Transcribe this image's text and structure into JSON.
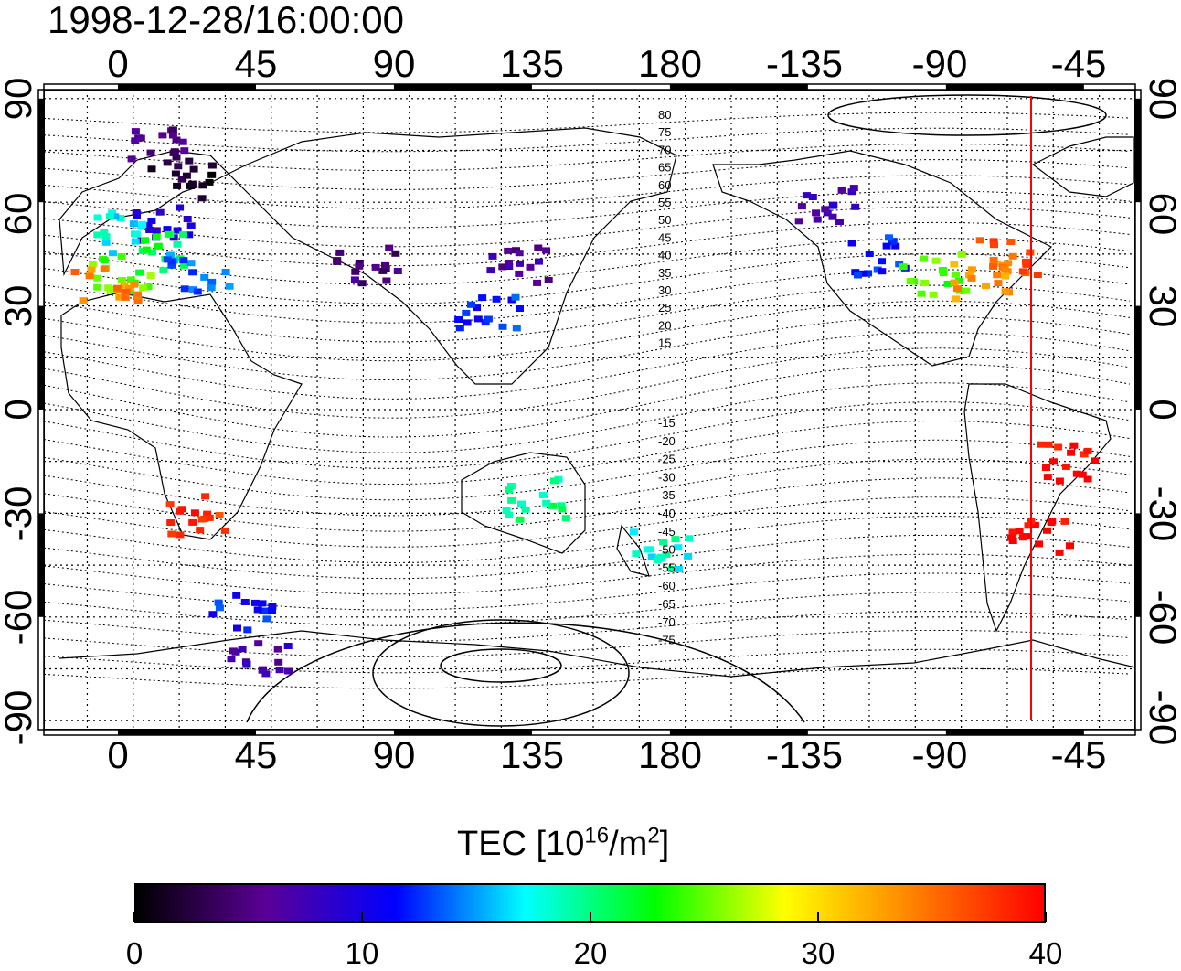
{
  "timestamp": "1998-12-28/16:00:00",
  "colorbar": {
    "title_prefix": "TEC  [10",
    "title_exp": "16",
    "title_mid": "/m",
    "title_exp2": "2",
    "title_suffix": "]",
    "ticks": [
      "0",
      "10",
      "20",
      "30",
      "40"
    ],
    "range": [
      0,
      40
    ],
    "colors": [
      "#000000",
      "#5a0096",
      "#0000ff",
      "#00ffff",
      "#00ff00",
      "#ffff00",
      "#ff8000",
      "#ff0000"
    ]
  },
  "axes": {
    "lon_top": [
      "0",
      "45",
      "90",
      "135",
      "180",
      "-135",
      "-90",
      "-45"
    ],
    "lon_bottom": [
      "0",
      "45",
      "90",
      "135",
      "180",
      "-135",
      "-90",
      "-45"
    ],
    "lat_left": [
      "90",
      "60",
      "30",
      "0",
      "-30",
      "-60",
      "-90"
    ],
    "lat_right": [
      "90",
      "60",
      "30",
      "0",
      "-30",
      "-60",
      "-90"
    ]
  },
  "contour_labels": {
    "north": [
      "80",
      "75",
      "70",
      "65",
      "60",
      "55",
      "50",
      "45",
      "40",
      "35",
      "30",
      "25",
      "20",
      "15"
    ],
    "south": [
      "-15",
      "-20",
      "-25",
      "-30",
      "-35",
      "-40",
      "-45",
      "-50",
      "-55",
      "-60",
      "-65",
      "-70",
      "-75"
    ]
  },
  "marker_line_color": "#ff0000",
  "tec_clusters": [
    {
      "lon": 10,
      "lat": 78,
      "tec": 5
    },
    {
      "lon": 20,
      "lat": 68,
      "tec": 2
    },
    {
      "lon": 15,
      "lat": 55,
      "tec": 9
    },
    {
      "lon": 0,
      "lat": 52,
      "tec": 17
    },
    {
      "lon": 10,
      "lat": 46,
      "tec": 21
    },
    {
      "lon": 0,
      "lat": 40,
      "tec": 25
    },
    {
      "lon": -5,
      "lat": 36,
      "tec": 34
    },
    {
      "lon": 25,
      "lat": 40,
      "tec": 14
    },
    {
      "lon": 130,
      "lat": 42,
      "tec": 6
    },
    {
      "lon": 120,
      "lat": 30,
      "tec": 12
    },
    {
      "lon": 80,
      "lat": 42,
      "tec": 5
    },
    {
      "lon": -115,
      "lat": 45,
      "tec": 12
    },
    {
      "lon": -95,
      "lat": 40,
      "tec": 24
    },
    {
      "lon": -80,
      "lat": 38,
      "tec": 33
    },
    {
      "lon": -70,
      "lat": 44,
      "tec": 36
    },
    {
      "lon": -130,
      "lat": 60,
      "tec": 8
    },
    {
      "lon": -50,
      "lat": -15,
      "tec": 40
    },
    {
      "lon": -60,
      "lat": -35,
      "tec": 40
    },
    {
      "lon": 135,
      "lat": -25,
      "tec": 20
    },
    {
      "lon": 175,
      "lat": -40,
      "tec": 18
    },
    {
      "lon": 25,
      "lat": -30,
      "tec": 38
    },
    {
      "lon": 40,
      "lat": -58,
      "tec": 12
    },
    {
      "lon": 45,
      "lat": -70,
      "tec": 7
    }
  ]
}
